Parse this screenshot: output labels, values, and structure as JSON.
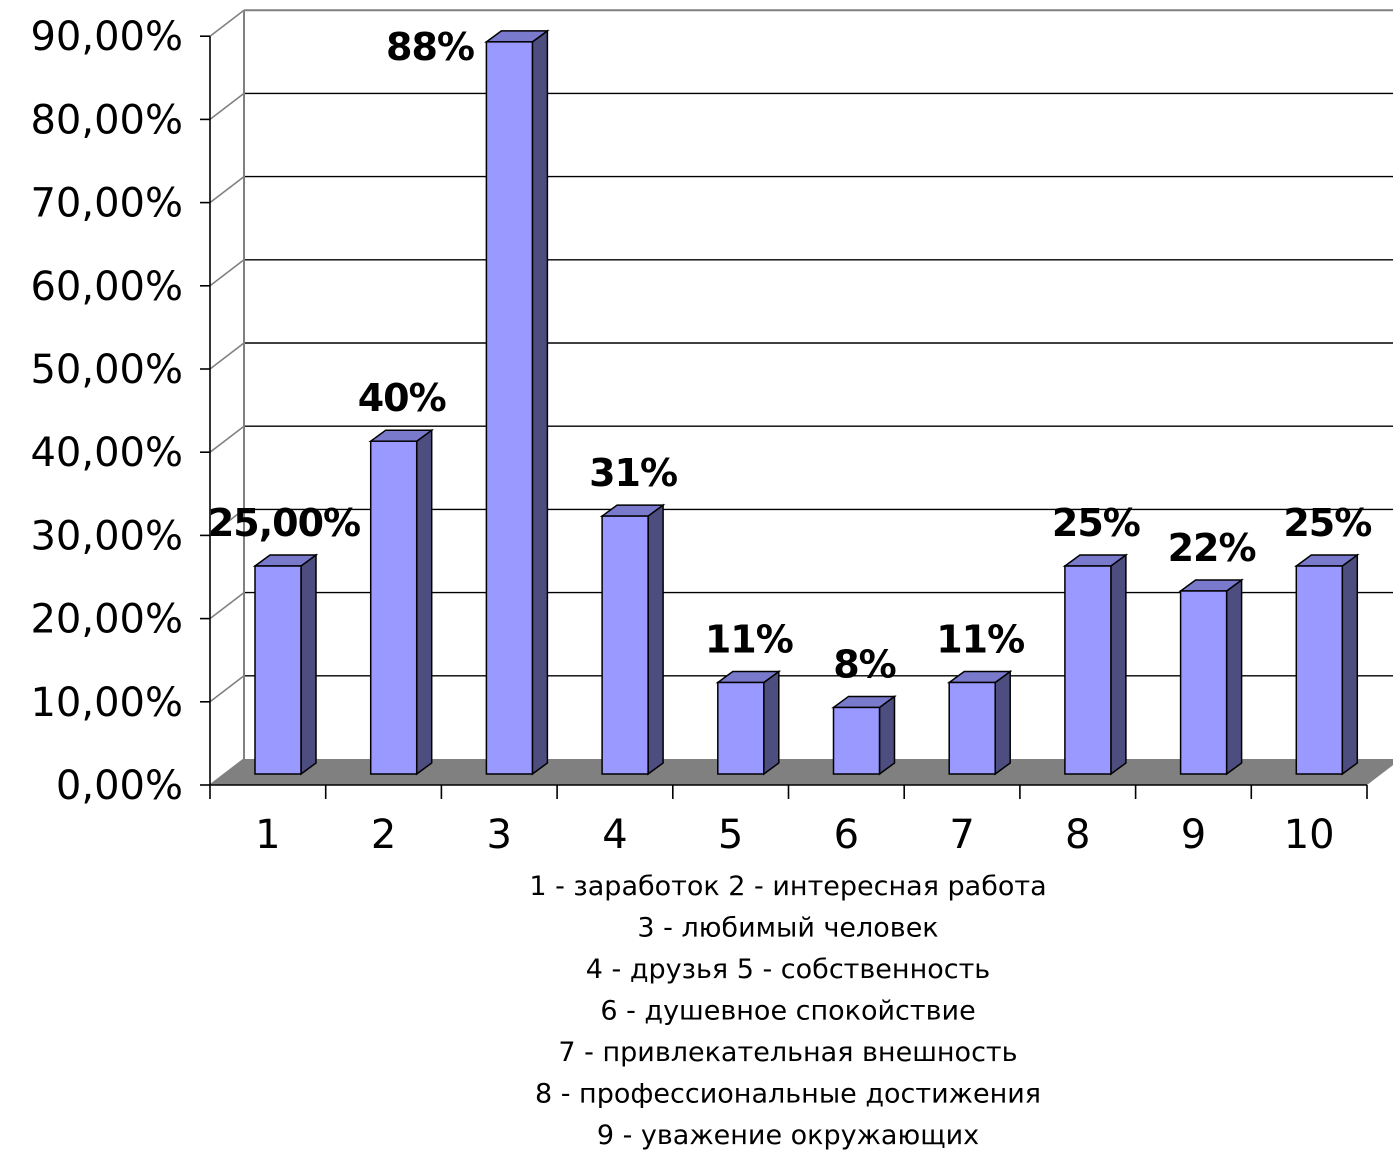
{
  "chart_data": {
    "type": "bar",
    "categories": [
      "1",
      "2",
      "3",
      "4",
      "5",
      "6",
      "7",
      "8",
      "9",
      "10"
    ],
    "values": [
      25,
      40,
      88,
      31,
      11,
      8,
      11,
      25,
      22,
      25
    ],
    "data_labels": [
      "25,00%",
      "40%",
      "88%",
      "31%",
      "11%",
      "8%",
      "11%",
      "25%",
      "22%",
      "25%"
    ],
    "y_tick_labels": [
      "0,00%",
      "10,00%",
      "20,00%",
      "30,00%",
      "40,00%",
      "50,00%",
      "60,00%",
      "70,00%",
      "80,00%",
      "90,00%"
    ],
    "ylim": [
      0,
      90
    ],
    "y_unit": "%",
    "grid": true,
    "style": "3d",
    "title": "",
    "xlabel": "",
    "ylabel": "",
    "caption_lines": [
      "1 - заработок 2 - интересная работа",
      "3 - любимый человек",
      "4 - друзья  5 - собственность",
      "6 - душевное спокойствие",
      "7 - привлекательная внешность",
      "8 - профессиональные достижения",
      "9 - уважение окружающих"
    ],
    "colors": {
      "bar_front": "#9999ff",
      "bar_side": "#4d4d80",
      "bar_top": "#7a7acc",
      "floor": "#808080",
      "grid": "#000000"
    }
  }
}
